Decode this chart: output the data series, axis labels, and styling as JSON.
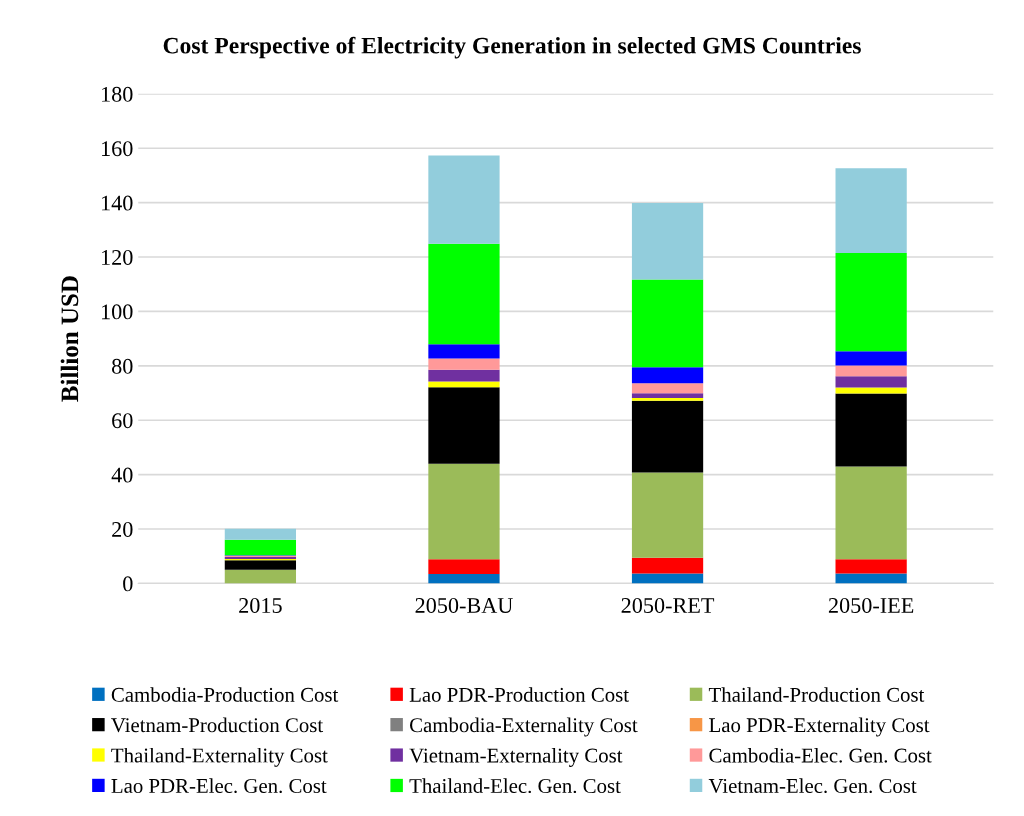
{
  "chart_data": {
    "type": "bar",
    "stacked": true,
    "title": "Cost Perspective of Electricity Generation in selected GMS Countries",
    "ylabel": "Billion USD",
    "categories": [
      "2015",
      "2050-BAU",
      "2050-RET",
      "2050-IEE"
    ],
    "series": [
      {
        "name": "Cambodia-Production Cost",
        "color": "#0070c0",
        "values": [
          0,
          3.5,
          3.7,
          3.7
        ]
      },
      {
        "name": "Lao PDR-Production Cost",
        "color": "#ff0000",
        "values": [
          0,
          5.4,
          5.7,
          5.2
        ]
      },
      {
        "name": "Thailand-Production Cost",
        "color": "#9bbb59",
        "values": [
          5.0,
          35.1,
          31.4,
          34.1
        ]
      },
      {
        "name": "Vietnam-Production Cost",
        "color": "#000000",
        "values": [
          3.5,
          28.1,
          26.4,
          26.8
        ]
      },
      {
        "name": "Cambodia-Externality Cost",
        "color": "#808080",
        "values": [
          0,
          0,
          0,
          0
        ]
      },
      {
        "name": "Lao PDR-Externality Cost",
        "color": "#f79646",
        "values": [
          0,
          0,
          0,
          0
        ]
      },
      {
        "name": "Thailand-Externality Cost",
        "color": "#ffff00",
        "values": [
          0.5,
          2.1,
          1.0,
          2.2
        ]
      },
      {
        "name": "Vietnam-Externality Cost",
        "color": "#7030a0",
        "values": [
          0.7,
          4.4,
          1.7,
          4.2
        ]
      },
      {
        "name": "Cambodia-Elec. Gen. Cost",
        "color": "#ff9999",
        "values": [
          0.5,
          4.1,
          3.7,
          3.9
        ]
      },
      {
        "name": "Lao PDR-Elec. Gen. Cost",
        "color": "#0000ff",
        "values": [
          0.2,
          5.2,
          5.9,
          5.3
        ]
      },
      {
        "name": "Thailand-Elec. Gen. Cost",
        "color": "#00ff00",
        "values": [
          5.7,
          37.0,
          32.2,
          36.1
        ]
      },
      {
        "name": "Vietnam-Elec. Gen. Cost",
        "color": "#92cddc",
        "values": [
          4.0,
          32.4,
          28.2,
          31.1
        ]
      }
    ],
    "ylim": [
      0,
      180
    ],
    "yticks": [
      0,
      20,
      40,
      60,
      80,
      100,
      120,
      140,
      160,
      180
    ],
    "grid": "y",
    "legend": "bottom"
  }
}
